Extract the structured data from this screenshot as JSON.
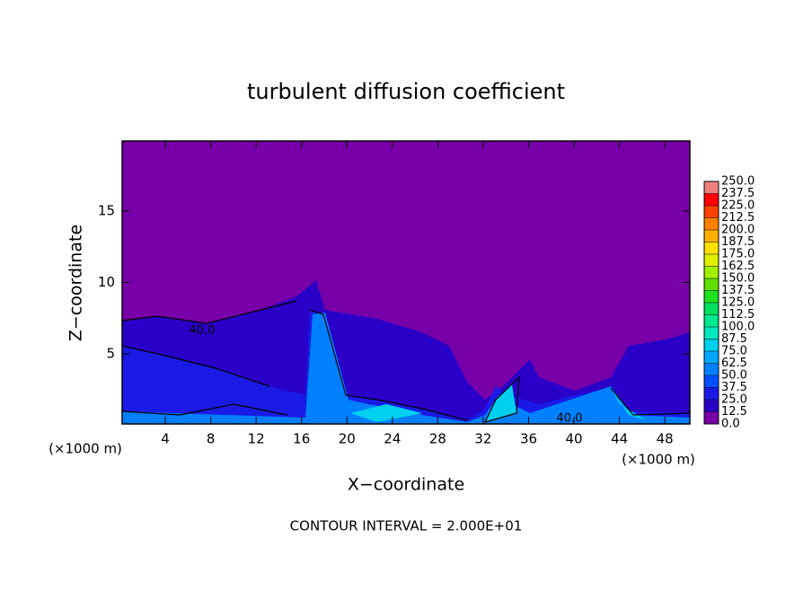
{
  "chart_data": {
    "type": "contour",
    "title": "turbulent diffusion coefficient",
    "x_label": "X−coordinate",
    "y_label": "Z−coordinate",
    "x_unit": "(×1000 m)",
    "x_unit_right": "(×1000 m)",
    "footnote": "CONTOUR INTERVAL = 2.000E+01",
    "contour_labels": [
      "40.0",
      "40.0"
    ],
    "xlim": [
      0.2,
      50.2
    ],
    "ylim": [
      0.1,
      19.9
    ],
    "xticks": [
      4,
      8,
      12,
      16,
      20,
      24,
      28,
      32,
      36,
      40,
      44,
      48
    ],
    "yticks": [
      5,
      10,
      15
    ],
    "colorbar_ticks": [
      {
        "value": 0,
        "label": "0.0"
      },
      {
        "value": 12.5,
        "label": "12.5"
      },
      {
        "value": 25,
        "label": "25.0"
      },
      {
        "value": 37.5,
        "label": "37.5"
      },
      {
        "value": 50,
        "label": "50.0"
      },
      {
        "value": 62.5,
        "label": "62.5"
      },
      {
        "value": 75,
        "label": "75.0"
      },
      {
        "value": 87.5,
        "label": "87.5"
      },
      {
        "value": 100,
        "label": "100.0"
      },
      {
        "value": 112.5,
        "label": "112.5"
      },
      {
        "value": 125,
        "label": "125.0"
      },
      {
        "value": 137.5,
        "label": "137.5"
      },
      {
        "value": 150,
        "label": "150.0"
      },
      {
        "value": 162.5,
        "label": "162.5"
      },
      {
        "value": 175,
        "label": "175.0"
      },
      {
        "value": 187.5,
        "label": "187.5"
      },
      {
        "value": 200,
        "label": "200.0"
      },
      {
        "value": 212.5,
        "label": "212.5"
      },
      {
        "value": 225,
        "label": "225.0"
      },
      {
        "value": 237.5,
        "label": "237.5"
      },
      {
        "value": 250,
        "label": "250.0"
      }
    ],
    "colorbar_colors": [
      "#7800a8",
      "#2a00c8",
      "#1a1ae6",
      "#0050ff",
      "#0080ff",
      "#00a8ff",
      "#00d0f0",
      "#00e8c0",
      "#00e890",
      "#00e060",
      "#20e020",
      "#60e000",
      "#a0f000",
      "#e0f000",
      "#ffe000",
      "#ffb000",
      "#ff8000",
      "#ff4000",
      "#ff0000",
      "#f08080"
    ]
  }
}
